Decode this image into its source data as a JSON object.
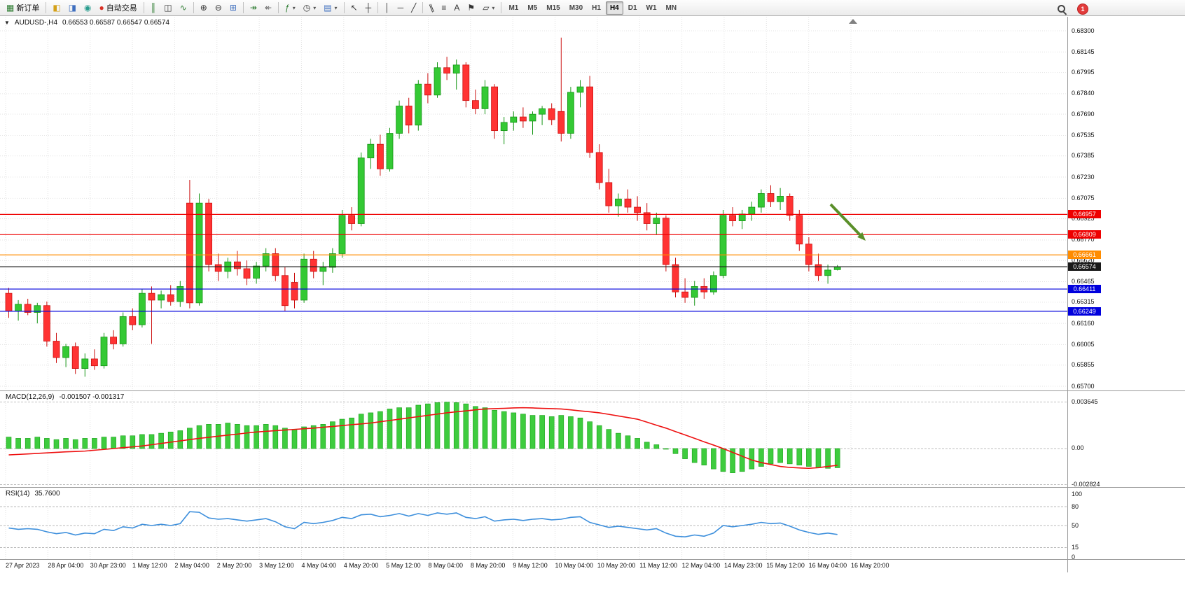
{
  "toolbar": {
    "groups": [
      {
        "items": [
          {
            "name": "new-order-button",
            "icon": "new-order-icon",
            "label": "新订单"
          }
        ]
      },
      {
        "items": [
          {
            "name": "market-watch-button",
            "icon": "market-watch-icon"
          },
          {
            "name": "data-window-button",
            "icon": "data-window-icon"
          },
          {
            "name": "navigator-button",
            "icon": "navigator-icon"
          },
          {
            "name": "autotrading-button",
            "icon": "autotrading-icon",
            "label": "自动交易"
          }
        ]
      },
      {
        "items": [
          {
            "name": "bar-chart-button",
            "icon": "bar-chart-icon"
          },
          {
            "name": "candlestick-chart-button",
            "icon": "candlestick-icon"
          },
          {
            "name": "line-chart-button",
            "icon": "line-chart-icon"
          }
        ]
      },
      {
        "items": [
          {
            "name": "zoom-in-button",
            "icon": "zoom-in-icon"
          },
          {
            "name": "zoom-out-button",
            "icon": "zoom-out-icon"
          },
          {
            "name": "tile-windows-button",
            "icon": "tile-windows-icon"
          }
        ]
      },
      {
        "items": [
          {
            "name": "auto-scroll-button",
            "icon": "auto-scroll-icon"
          },
          {
            "name": "chart-shift-button",
            "icon": "chart-shift-icon"
          }
        ]
      },
      {
        "items": [
          {
            "name": "indicators-button",
            "icon": "indicators-icon",
            "dropdown": true
          },
          {
            "name": "periods-button",
            "icon": "periods-icon",
            "dropdown": true
          },
          {
            "name": "templates-button",
            "icon": "templates-icon",
            "dropdown": true
          }
        ]
      },
      {
        "items": [
          {
            "name": "cursor-button",
            "icon": "cursor-icon"
          },
          {
            "name": "crosshair-button",
            "icon": "crosshair-icon"
          }
        ]
      },
      {
        "items": [
          {
            "name": "vertical-line-button",
            "icon": "vertical-line-icon"
          },
          {
            "name": "horizontal-line-button",
            "icon": "horizontal-line-icon"
          },
          {
            "name": "trendline-button",
            "icon": "trendline-icon"
          }
        ]
      },
      {
        "items": [
          {
            "name": "equidistant-channel-button",
            "icon": "channel-icon"
          },
          {
            "name": "fibonacci-button",
            "icon": "fibonacci-icon"
          },
          {
            "name": "text-button",
            "icon": "text-icon"
          },
          {
            "name": "text-label-button",
            "icon": "text-label-icon"
          },
          {
            "name": "shapes-button",
            "icon": "shapes-icon",
            "dropdown": true
          }
        ]
      }
    ],
    "timeframes": [
      {
        "label": "M1"
      },
      {
        "label": "M5"
      },
      {
        "label": "M15"
      },
      {
        "label": "M30"
      },
      {
        "label": "H1"
      },
      {
        "label": "H4",
        "active": true
      },
      {
        "label": "D1"
      },
      {
        "label": "W1"
      },
      {
        "label": "MN"
      }
    ],
    "notification_count": "1"
  },
  "chart": {
    "symbol_label": "AUDUSD-,H4",
    "ohlc_label": "0.66553 0.66587 0.66547 0.66574"
  },
  "indicators": {
    "macd": {
      "label": "MACD(12,26,9)",
      "values_label": "-0.001507 -0.001317"
    },
    "rsi": {
      "label": "RSI(14)",
      "value_label": "35.7600"
    }
  },
  "chart_data": {
    "type": "candlestick",
    "symbol": "AUDUSD",
    "timeframe": "H4",
    "y_min": 0.657,
    "y_max": 0.683,
    "price_ticks": [
      "0.68300",
      "0.68145",
      "0.67995",
      "0.67840",
      "0.67690",
      "0.67535",
      "0.67385",
      "0.67230",
      "0.67075",
      "0.66925",
      "0.66770",
      "0.66620",
      "0.66465",
      "0.66315",
      "0.66160",
      "0.66005",
      "0.65855",
      "0.65700"
    ],
    "time_labels": [
      "27 Apr 2023",
      "28 Apr 04:00",
      "30 Apr 23:00",
      "1 May 12:00",
      "2 May 04:00",
      "2 May 20:00",
      "3 May 12:00",
      "4 May 04:00",
      "4 May 20:00",
      "5 May 12:00",
      "8 May 04:00",
      "8 May 20:00",
      "9 May 12:00",
      "10 May 04:00",
      "10 May 20:00",
      "11 May 12:00",
      "12 May 04:00",
      "14 May 23:00",
      "15 May 12:00",
      "16 May 04:00",
      "16 May 20:00"
    ],
    "colors": {
      "up": "#34c934",
      "up_stroke": "#169616",
      "down": "#ff3333",
      "down_stroke": "#cc1111"
    },
    "ohlc": [
      [
        0.6638,
        0.6642,
        0.662,
        0.6625
      ],
      [
        0.6625,
        0.6633,
        0.6618,
        0.663
      ],
      [
        0.663,
        0.6634,
        0.6622,
        0.6624
      ],
      [
        0.6624,
        0.6631,
        0.6616,
        0.6629
      ],
      [
        0.6629,
        0.6632,
        0.6599,
        0.6603
      ],
      [
        0.6603,
        0.6609,
        0.6587,
        0.6591
      ],
      [
        0.6591,
        0.6601,
        0.6584,
        0.6599
      ],
      [
        0.6599,
        0.6602,
        0.6579,
        0.6583
      ],
      [
        0.6583,
        0.6594,
        0.6577,
        0.659
      ],
      [
        0.659,
        0.6597,
        0.6582,
        0.6585
      ],
      [
        0.6585,
        0.6609,
        0.6583,
        0.6606
      ],
      [
        0.6606,
        0.6611,
        0.6597,
        0.6601
      ],
      [
        0.6601,
        0.6624,
        0.6599,
        0.6621
      ],
      [
        0.6621,
        0.6627,
        0.6611,
        0.6615
      ],
      [
        0.6615,
        0.6641,
        0.6613,
        0.6638
      ],
      [
        0.6638,
        0.6643,
        0.6601,
        0.6633
      ],
      [
        0.6633,
        0.664,
        0.6627,
        0.6637
      ],
      [
        0.6637,
        0.6644,
        0.6629,
        0.6632
      ],
      [
        0.6632,
        0.6647,
        0.6628,
        0.6643
      ],
      [
        0.6704,
        0.6721,
        0.6627,
        0.6631
      ],
      [
        0.6631,
        0.6711,
        0.6629,
        0.6704
      ],
      [
        0.6704,
        0.6707,
        0.6654,
        0.6659
      ],
      [
        0.6659,
        0.6667,
        0.6647,
        0.6654
      ],
      [
        0.6654,
        0.6664,
        0.6649,
        0.6661
      ],
      [
        0.6661,
        0.6669,
        0.6651,
        0.6656
      ],
      [
        0.6656,
        0.6662,
        0.6644,
        0.6649
      ],
      [
        0.6649,
        0.6661,
        0.6645,
        0.6658
      ],
      [
        0.6658,
        0.6671,
        0.6654,
        0.6667
      ],
      [
        0.6667,
        0.6671,
        0.6647,
        0.6651
      ],
      [
        0.6651,
        0.6657,
        0.6625,
        0.6629
      ],
      [
        0.6646,
        0.6653,
        0.6627,
        0.6633
      ],
      [
        0.6633,
        0.6667,
        0.6631,
        0.6663
      ],
      [
        0.6663,
        0.6669,
        0.6649,
        0.6654
      ],
      [
        0.6654,
        0.6661,
        0.6644,
        0.6657
      ],
      [
        0.6657,
        0.6671,
        0.6653,
        0.6667
      ],
      [
        0.6667,
        0.6699,
        0.6664,
        0.6695
      ],
      [
        0.6695,
        0.6701,
        0.6684,
        0.6689
      ],
      [
        0.6689,
        0.6741,
        0.6687,
        0.6737
      ],
      [
        0.6737,
        0.6751,
        0.6729,
        0.6747
      ],
      [
        0.6747,
        0.6754,
        0.6724,
        0.6729
      ],
      [
        0.6729,
        0.6759,
        0.6727,
        0.6755
      ],
      [
        0.6755,
        0.6779,
        0.6751,
        0.6775
      ],
      [
        0.6775,
        0.6781,
        0.6755,
        0.6761
      ],
      [
        0.6761,
        0.6794,
        0.6757,
        0.6791
      ],
      [
        0.6791,
        0.6799,
        0.6777,
        0.6783
      ],
      [
        0.6783,
        0.6807,
        0.6781,
        0.6803
      ],
      [
        0.6803,
        0.6811,
        0.6794,
        0.6799
      ],
      [
        0.6799,
        0.6809,
        0.6787,
        0.6805
      ],
      [
        0.6805,
        0.6807,
        0.6774,
        0.6779
      ],
      [
        0.6779,
        0.6787,
        0.6769,
        0.6773
      ],
      [
        0.6773,
        0.6794,
        0.6769,
        0.6789
      ],
      [
        0.6789,
        0.6791,
        0.6751,
        0.6757
      ],
      [
        0.6757,
        0.6767,
        0.6747,
        0.6763
      ],
      [
        0.6763,
        0.6771,
        0.6757,
        0.6767
      ],
      [
        0.6767,
        0.6774,
        0.6759,
        0.6764
      ],
      [
        0.6764,
        0.6771,
        0.6754,
        0.6769
      ],
      [
        0.6769,
        0.6775,
        0.6761,
        0.6773
      ],
      [
        0.6773,
        0.6777,
        0.6761,
        0.6765
      ],
      [
        0.6771,
        0.6825,
        0.6749,
        0.6755
      ],
      [
        0.6755,
        0.6789,
        0.6751,
        0.6785
      ],
      [
        0.6785,
        0.6794,
        0.6774,
        0.6789
      ],
      [
        0.6789,
        0.6797,
        0.6737,
        0.6741
      ],
      [
        0.6741,
        0.6747,
        0.6714,
        0.6719
      ],
      [
        0.6719,
        0.6729,
        0.6697,
        0.6702
      ],
      [
        0.6702,
        0.6711,
        0.6694,
        0.6707
      ],
      [
        0.6707,
        0.6714,
        0.6697,
        0.6701
      ],
      [
        0.6701,
        0.6709,
        0.6691,
        0.6697
      ],
      [
        0.6697,
        0.6704,
        0.6684,
        0.6689
      ],
      [
        0.6689,
        0.6697,
        0.6681,
        0.6693
      ],
      [
        0.6693,
        0.6695,
        0.6654,
        0.6659
      ],
      [
        0.6659,
        0.6664,
        0.6635,
        0.6639
      ],
      [
        0.6639,
        0.6649,
        0.6631,
        0.6635
      ],
      [
        0.6635,
        0.6647,
        0.6629,
        0.6643
      ],
      [
        0.6643,
        0.6649,
        0.6634,
        0.6639
      ],
      [
        0.6639,
        0.6654,
        0.6637,
        0.6651
      ],
      [
        0.6651,
        0.6699,
        0.6649,
        0.6695
      ],
      [
        0.6695,
        0.6701,
        0.6687,
        0.6691
      ],
      [
        0.6691,
        0.6699,
        0.6685,
        0.6696
      ],
      [
        0.6696,
        0.6705,
        0.6691,
        0.6701
      ],
      [
        0.6701,
        0.6714,
        0.6697,
        0.6711
      ],
      [
        0.6711,
        0.6717,
        0.6701,
        0.6705
      ],
      [
        0.6705,
        0.6715,
        0.6699,
        0.6709
      ],
      [
        0.6709,
        0.6711,
        0.6691,
        0.6695
      ],
      [
        0.6695,
        0.6699,
        0.6669,
        0.6674
      ],
      [
        0.6674,
        0.6679,
        0.6654,
        0.6659
      ],
      [
        0.6659,
        0.6667,
        0.6647,
        0.6651
      ],
      [
        0.6651,
        0.6659,
        0.6645,
        0.6655
      ],
      [
        0.66553,
        0.66587,
        0.66547,
        0.66574
      ]
    ],
    "hlines": [
      {
        "name": "resistance-line-1",
        "price": 0.66957,
        "label": "0.66957",
        "color": "#ee0000"
      },
      {
        "name": "resistance-line-2",
        "price": 0.66809,
        "label": "0.66809",
        "color": "#ee0000"
      },
      {
        "name": "pivot-line",
        "price": 0.66661,
        "label": "0.66661",
        "color": "#ff8c00"
      },
      {
        "name": "bid-price-line",
        "price": 0.66574,
        "label": "0.66574",
        "color": "#1a1a1a"
      },
      {
        "name": "support-line-1",
        "price": 0.66411,
        "label": "0.66411",
        "color": "#0000dd"
      },
      {
        "name": "support-line-2",
        "price": 0.66249,
        "label": "0.66249",
        "color": "#0000dd"
      }
    ],
    "arrow_annotation": {
      "color": "#5a8f29",
      "from": [
        1186,
        292
      ],
      "to": [
        1236,
        344
      ]
    },
    "macd": {
      "histogram_color": "#3ecc3e",
      "signal_color": "#ee1111",
      "scale_labels": [
        "0.003645",
        "0.00",
        "-0.002824"
      ],
      "histogram": [
        0.0009,
        0.0008,
        0.0008,
        0.0009,
        0.0008,
        0.0007,
        0.0008,
        0.0007,
        0.0008,
        0.0008,
        0.0009,
        0.0009,
        0.001,
        0.001,
        0.0011,
        0.0011,
        0.0012,
        0.0013,
        0.0014,
        0.0016,
        0.0018,
        0.0019,
        0.0019,
        0.002,
        0.0019,
        0.0018,
        0.0018,
        0.0019,
        0.0018,
        0.0016,
        0.0015,
        0.0017,
        0.0018,
        0.0019,
        0.0021,
        0.0023,
        0.0024,
        0.0027,
        0.0028,
        0.0029,
        0.0031,
        0.0032,
        0.0032,
        0.0034,
        0.0035,
        0.0036,
        0.00364,
        0.0036,
        0.0035,
        0.0033,
        0.0032,
        0.003,
        0.0029,
        0.0028,
        0.0027,
        0.0026,
        0.0026,
        0.0025,
        0.0026,
        0.0025,
        0.0024,
        0.0021,
        0.0018,
        0.0015,
        0.0012,
        0.001,
        0.0008,
        0.0005,
        0.0003,
        0.0,
        -0.0004,
        -0.0008,
        -0.0011,
        -0.0013,
        -0.0016,
        -0.0018,
        -0.0019,
        -0.0018,
        -0.0016,
        -0.0014,
        -0.0012,
        -0.0011,
        -0.0012,
        -0.0013,
        -0.0014,
        -0.0015,
        -0.00155,
        -0.001507
      ],
      "signal": [
        -0.0005,
        -0.00046,
        -0.00042,
        -0.00038,
        -0.00034,
        -0.0003,
        -0.00026,
        -0.00023,
        -0.0002,
        -0.00013,
        -7e-05,
        0.0,
        7e-05,
        0.00013,
        0.0002,
        0.0003,
        0.0004,
        0.0005,
        0.0006,
        0.0007,
        0.0008,
        0.00088,
        0.00097,
        0.00105,
        0.00113,
        0.00122,
        0.0013,
        0.00135,
        0.0014,
        0.00145,
        0.0015,
        0.00155,
        0.0016,
        0.00167,
        0.00173,
        0.0018,
        0.00187,
        0.00193,
        0.002,
        0.0021,
        0.0022,
        0.0023,
        0.0024,
        0.0025,
        0.0026,
        0.0027,
        0.0028,
        0.00288,
        0.00295,
        0.00303,
        0.0031,
        0.00313,
        0.00315,
        0.00318,
        0.0032,
        0.00318,
        0.00315,
        0.00313,
        0.0031,
        0.00303,
        0.00295,
        0.00288,
        0.0028,
        0.00268,
        0.00255,
        0.00243,
        0.0023,
        0.00207,
        0.00183,
        0.0016,
        0.00133,
        0.00107,
        0.0008,
        0.00053,
        0.00027,
        0.0,
        -0.0003,
        -0.0006,
        -0.0009,
        -0.0011,
        -0.00125,
        -0.0014,
        -0.00148,
        -0.00152,
        -0.00155,
        -0.0015,
        -0.0014,
        -0.001317
      ]
    },
    "rsi": {
      "line_color": "#3d8fdc",
      "levels": [
        80,
        50,
        15
      ],
      "scale_labels": [
        "100",
        "80",
        "50",
        "15",
        "0"
      ],
      "values": [
        46,
        44,
        45,
        44,
        40,
        37,
        39,
        35,
        38,
        37,
        44,
        42,
        48,
        46,
        52,
        50,
        52,
        50,
        53,
        72,
        71,
        62,
        60,
        61,
        59,
        57,
        59,
        61,
        56,
        48,
        45,
        55,
        53,
        55,
        58,
        63,
        61,
        67,
        68,
        64,
        66,
        69,
        65,
        69,
        66,
        70,
        68,
        70,
        63,
        61,
        64,
        57,
        59,
        60,
        58,
        60,
        61,
        59,
        60,
        63,
        64,
        55,
        51,
        47,
        49,
        47,
        45,
        43,
        45,
        38,
        33,
        32,
        35,
        33,
        38,
        50,
        48,
        50,
        52,
        55,
        53,
        54,
        49,
        43,
        39,
        36,
        38,
        35.76
      ]
    }
  }
}
